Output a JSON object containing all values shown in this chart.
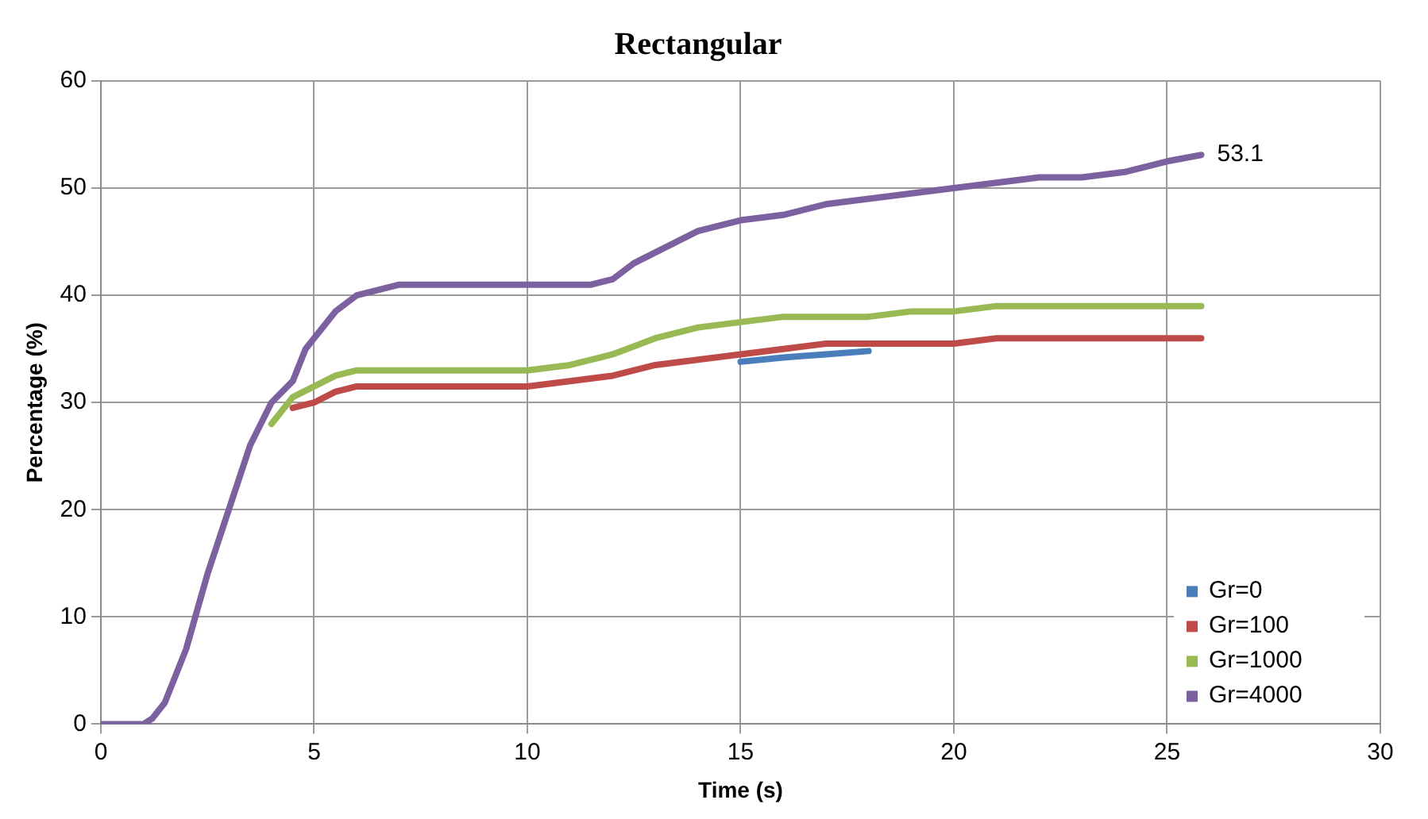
{
  "chart_data": {
    "type": "line",
    "title": "Rectangular",
    "xlabel": "Time (s)",
    "ylabel": "Percentage (%)",
    "xlim": [
      0,
      30
    ],
    "xticks": [
      0,
      5,
      10,
      15,
      20,
      25,
      30
    ],
    "ylim": [
      0,
      60
    ],
    "yticks": [
      0,
      10,
      20,
      30,
      40,
      50,
      60
    ],
    "grid": true,
    "legend": "bottom right",
    "marker": "none",
    "line_style": "solid",
    "annotations": [
      {
        "text": "53.1",
        "x": 25.8,
        "y": 53.1
      }
    ],
    "series": [
      {
        "name": "Gr=0",
        "color": "#4a7ebb",
        "x": [
          15,
          16,
          17,
          18
        ],
        "values": [
          33.8,
          34.2,
          34.5,
          34.8
        ]
      },
      {
        "name": "Gr=100",
        "color": "#be4b48",
        "x": [
          4.5,
          5,
          5.5,
          6,
          7,
          8,
          9,
          10,
          11,
          12,
          13,
          14,
          15,
          16,
          17,
          18,
          19,
          20,
          21,
          22,
          23,
          24,
          25,
          25.8
        ],
        "values": [
          29.5,
          30,
          31,
          31.5,
          31.5,
          31.5,
          31.5,
          31.5,
          32,
          32.5,
          33.5,
          34,
          34.5,
          35,
          35.5,
          35.5,
          35.5,
          35.5,
          36,
          36,
          36,
          36,
          36,
          36
        ]
      },
      {
        "name": "Gr=1000",
        "color": "#98b954",
        "x": [
          4,
          4.5,
          5,
          5.5,
          6,
          7,
          8,
          9,
          10,
          11,
          12,
          13,
          14,
          15,
          16,
          17,
          18,
          19,
          20,
          21,
          22,
          23,
          24,
          25,
          25.8
        ],
        "values": [
          28,
          30.5,
          31.5,
          32.5,
          33,
          33,
          33,
          33,
          33,
          33.5,
          34.5,
          36,
          37,
          37.5,
          38,
          38,
          38,
          38.5,
          38.5,
          39,
          39,
          39,
          39,
          39,
          39
        ]
      },
      {
        "name": "Gr=4000",
        "color": "#7d60a0",
        "x": [
          0,
          0.5,
          1,
          1.2,
          1.5,
          2,
          2.5,
          3,
          3.5,
          4,
          4.5,
          4.8,
          5,
          5.5,
          6,
          6.5,
          7,
          8,
          9,
          10,
          11,
          11.5,
          12,
          12.5,
          13,
          13.5,
          14,
          15,
          16,
          17,
          18,
          19,
          20,
          21,
          22,
          23,
          24,
          25,
          25.8
        ],
        "values": [
          0,
          0,
          0,
          0.5,
          2,
          7,
          14,
          20,
          26,
          30,
          32,
          35,
          36,
          38.5,
          40,
          40.5,
          41,
          41,
          41,
          41,
          41,
          41,
          41.5,
          43,
          44,
          45,
          46,
          47,
          47.5,
          48.5,
          49,
          49.5,
          50,
          50.5,
          51,
          51,
          51.5,
          52.5,
          53.1
        ]
      }
    ]
  }
}
